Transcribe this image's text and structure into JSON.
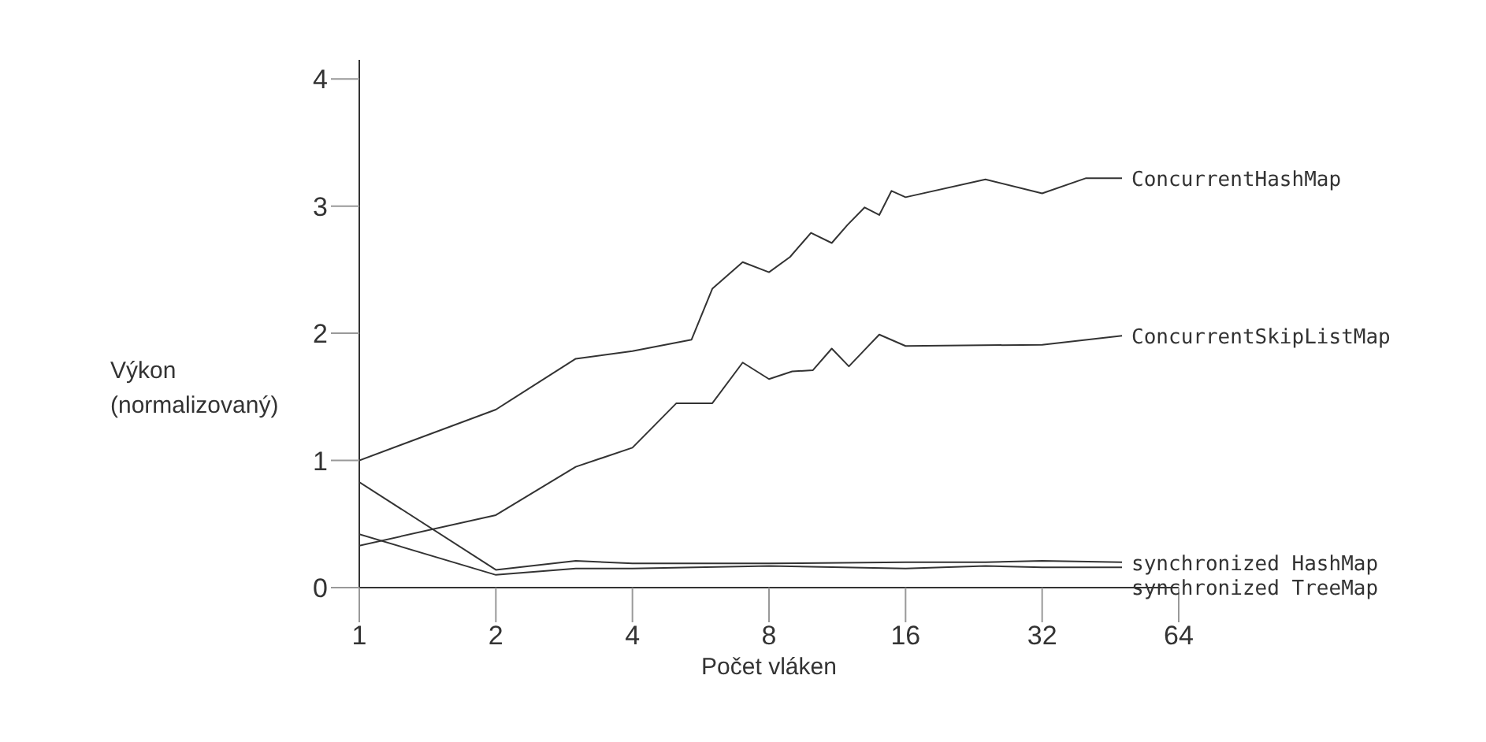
{
  "chart_data": {
    "type": "line",
    "xlabel": "Počet vláken",
    "ylabel": "Výkon (normalizovaný)",
    "log": "x",
    "xlim": [
      1,
      64
    ],
    "xticks": [
      1,
      2,
      4,
      8,
      16,
      32,
      64
    ],
    "ylim": [
      0,
      4.15
    ],
    "yticks": [
      0,
      1,
      2,
      3,
      4
    ],
    "grid": false,
    "legend": false,
    "marker": "none",
    "line_style": "solid",
    "series": [
      {
        "name": "ConcurrentHashMap",
        "color": "#333333",
        "x": [
          1,
          2,
          3,
          4,
          5.4,
          6,
          7,
          8,
          8.9,
          9.9,
          11,
          11.9,
          13,
          14,
          14.9,
          16,
          24,
          32,
          40,
          48
        ],
        "values": [
          1.0,
          1.4,
          1.8,
          1.86,
          1.95,
          2.35,
          2.56,
          2.48,
          2.6,
          2.79,
          2.71,
          2.85,
          2.99,
          2.93,
          3.12,
          3.07,
          3.21,
          3.1,
          3.22,
          3.22
        ]
      },
      {
        "name": "ConcurrentSkipListMap",
        "color": "#333333",
        "x": [
          1,
          2,
          3,
          4,
          5,
          6,
          7,
          8,
          9,
          10,
          11,
          12,
          13,
          14,
          16,
          32,
          48
        ],
        "values": [
          0.33,
          0.57,
          0.95,
          1.1,
          1.45,
          1.45,
          1.77,
          1.64,
          1.7,
          1.71,
          1.88,
          1.74,
          1.87,
          1.99,
          1.9,
          1.91,
          1.98
        ]
      },
      {
        "name": "synchronized HashMap",
        "color": "#333333",
        "x": [
          1,
          2,
          3,
          4,
          8,
          16,
          24,
          32,
          48
        ],
        "values": [
          0.83,
          0.14,
          0.21,
          0.19,
          0.19,
          0.2,
          0.2,
          0.21,
          0.2
        ]
      },
      {
        "name": "synchronized TreeMap",
        "color": "#333333",
        "x": [
          1,
          2,
          3,
          4,
          8,
          16,
          24,
          32,
          48
        ],
        "values": [
          0.42,
          0.1,
          0.15,
          0.15,
          0.17,
          0.15,
          0.17,
          0.16,
          0.16
        ]
      }
    ]
  }
}
